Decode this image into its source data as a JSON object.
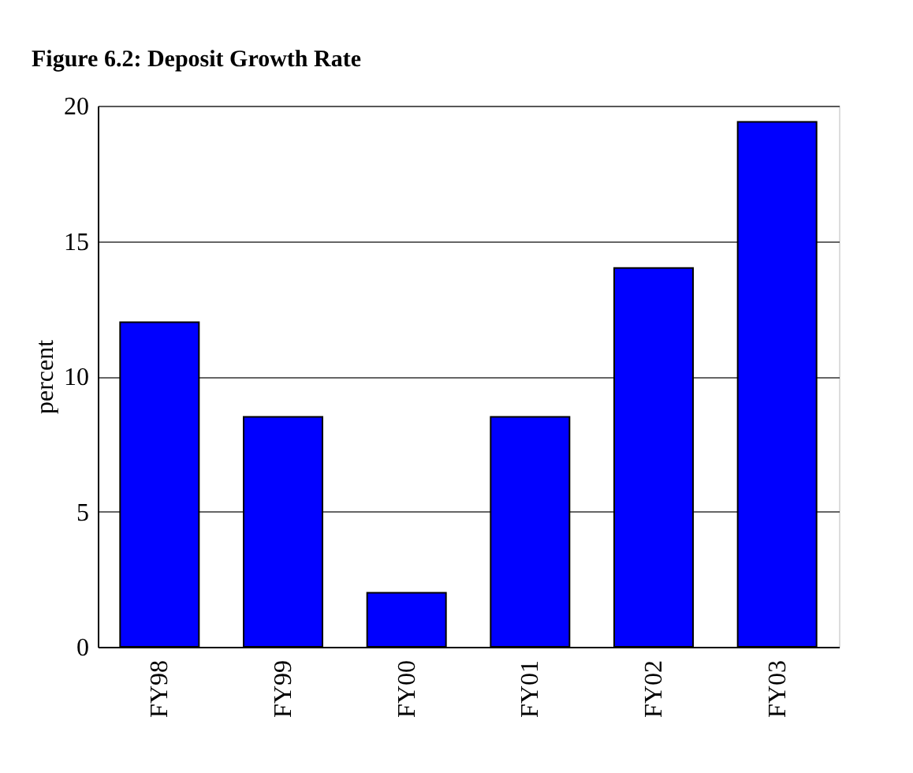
{
  "chart_data": {
    "type": "bar",
    "title": "Figure 6.2: Deposit Growth Rate",
    "ylabel": "percent",
    "categories": [
      "FY98",
      "FY99",
      "FY00",
      "FY01",
      "FY02",
      "FY03"
    ],
    "values": [
      12,
      8.5,
      2,
      8.5,
      14,
      19.4
    ],
    "color": "#0000ff",
    "ylim": [
      0,
      20
    ],
    "yticks": [
      0,
      5,
      10,
      15,
      20
    ],
    "grid": "y"
  }
}
